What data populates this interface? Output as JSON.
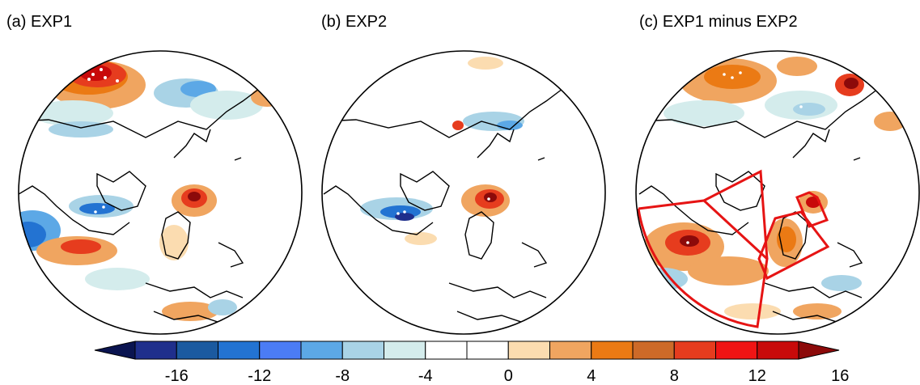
{
  "panels": [
    {
      "title": "(a) EXP1"
    },
    {
      "title": "(b) EXP2"
    },
    {
      "title": "(c) EXP1 minus EXP2"
    }
  ],
  "colorbar": {
    "colors": [
      "#0a1450",
      "#1f2f8c",
      "#1b5aa0",
      "#2373d2",
      "#4b7cf5",
      "#5ca8e6",
      "#a9d3e6",
      "#d4ecec",
      "#ffffff",
      "#ffffff",
      "#fbdcb0",
      "#f0a560",
      "#eb7a14",
      "#cd6a28",
      "#e63c1e",
      "#f01414",
      "#c80a0a",
      "#8c0a0a"
    ],
    "tick_labels": [
      "-16",
      "-12",
      "-8",
      "-4",
      "0",
      "4",
      "8",
      "12",
      "16"
    ]
  }
}
